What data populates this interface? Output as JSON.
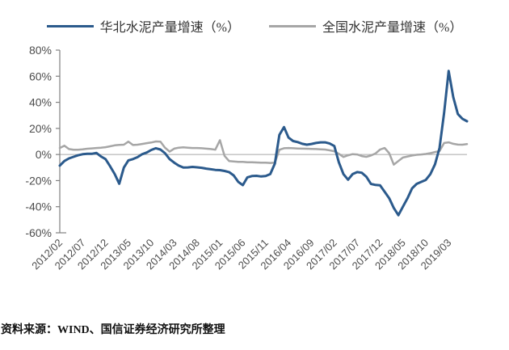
{
  "legend": {
    "items": [
      {
        "id": "north-china",
        "label": "华北水泥产量增速（%）",
        "color": "#2b5a8c"
      },
      {
        "id": "national",
        "label": "全国水泥产量增速（%）",
        "color": "#a6a6a6"
      }
    ]
  },
  "source_note": "资料来源：WIND、国信证券经济研究所整理",
  "chart_data": {
    "type": "line",
    "title": "",
    "legend_position": "top-center",
    "grid": "zero-line-only",
    "ylim": [
      -60,
      80
    ],
    "y_ticks": [
      80,
      60,
      40,
      20,
      0,
      -20,
      -40,
      -60
    ],
    "y_tick_labels": [
      "80%",
      "60%",
      "40%",
      "20%",
      "0%",
      "-20%",
      "-40%",
      "-60%"
    ],
    "x_tick_every": 5,
    "x_tick_labels": [
      "2012/02",
      "2012/07",
      "2012/12",
      "2013/05",
      "2013/10",
      "2014/03",
      "2014/08",
      "2015/01",
      "2015/06",
      "2015/11",
      "2016/04",
      "2016/09",
      "2017/02",
      "2017/07",
      "2017/12",
      "2018/05",
      "2018/10",
      "2019/03"
    ],
    "categories": [
      "2012/02",
      "2012/03",
      "2012/04",
      "2012/05",
      "2012/06",
      "2012/07",
      "2012/08",
      "2012/09",
      "2012/10",
      "2012/11",
      "2012/12",
      "2013/01",
      "2013/02",
      "2013/03",
      "2013/04",
      "2013/05",
      "2013/06",
      "2013/07",
      "2013/08",
      "2013/09",
      "2013/10",
      "2013/11",
      "2013/12",
      "2014/01",
      "2014/02",
      "2014/03",
      "2014/04",
      "2014/05",
      "2014/06",
      "2014/07",
      "2014/08",
      "2014/09",
      "2014/10",
      "2014/11",
      "2014/12",
      "2015/01",
      "2015/02",
      "2015/03",
      "2015/04",
      "2015/05",
      "2015/06",
      "2015/07",
      "2015/08",
      "2015/09",
      "2015/10",
      "2015/11",
      "2015/12",
      "2016/01",
      "2016/02",
      "2016/03",
      "2016/04",
      "2016/05",
      "2016/06",
      "2016/07",
      "2016/08",
      "2016/09",
      "2016/10",
      "2016/11",
      "2016/12",
      "2017/01",
      "2017/02",
      "2017/03",
      "2017/04",
      "2017/05",
      "2017/06",
      "2017/07",
      "2017/08",
      "2017/09",
      "2017/10",
      "2017/11",
      "2017/12",
      "2018/01",
      "2018/02",
      "2018/03",
      "2018/04",
      "2018/05",
      "2018/06",
      "2018/07",
      "2018/08",
      "2018/09",
      "2018/10",
      "2018/11",
      "2018/12",
      "2019/01",
      "2019/02",
      "2019/03",
      "2019/04",
      "2019/05",
      "2019/06",
      "2019/07"
    ],
    "series": [
      {
        "id": "north-china",
        "name": "华北水泥产量增速（%）",
        "color": "#2b5a8c",
        "stroke_width": 3,
        "values": [
          -8.5,
          -5,
          -3,
          -1.8,
          -0.6,
          0.2,
          0.5,
          0.5,
          1.2,
          -1.5,
          -3.5,
          -9,
          -15,
          -22.4,
          -10,
          -4.5,
          -3.5,
          -2,
          0.2,
          1.5,
          3.5,
          4.8,
          3.8,
          1,
          -3.5,
          -6.2,
          -8.5,
          -10,
          -9.9,
          -9.5,
          -9.8,
          -10.2,
          -10.8,
          -11.3,
          -11.8,
          -12,
          -12.6,
          -13.5,
          -16,
          -21,
          -23.5,
          -17.5,
          -16.5,
          -16.3,
          -16.8,
          -16.5,
          -15,
          -7,
          15,
          21,
          13,
          10.3,
          9.5,
          8.2,
          7.5,
          8.1,
          8.8,
          9.3,
          9.3,
          8.4,
          6.5,
          -6,
          -15,
          -19.3,
          -15,
          -13.5,
          -14,
          -17,
          -22.5,
          -23.3,
          -23.6,
          -28.6,
          -33.5,
          -41,
          -46.5,
          -40,
          -33.5,
          -26,
          -22.5,
          -21,
          -19.5,
          -15,
          -7.5,
          5,
          32,
          64,
          44,
          31,
          27.4,
          25.5
        ]
      },
      {
        "id": "national",
        "name": "全国水泥产量增速（%）",
        "color": "#a6a6a6",
        "stroke_width": 2.5,
        "values": [
          5,
          6.8,
          4.2,
          3.7,
          3.7,
          4,
          4.4,
          4.7,
          5,
          5.2,
          5.6,
          6.3,
          7,
          7.4,
          7.5,
          9.9,
          7.3,
          7.5,
          8.1,
          8.7,
          9.2,
          10,
          9.8,
          5.2,
          2.2,
          4.5,
          5.2,
          5.5,
          5.2,
          5,
          5,
          4.8,
          4.5,
          4.2,
          3.7,
          11,
          -1,
          -5,
          -5.3,
          -5.6,
          -5.6,
          -6,
          -6,
          -6.1,
          -6.2,
          -6.3,
          -6.5,
          -6.2,
          3.6,
          4.8,
          5,
          4.8,
          4.6,
          4.5,
          4.4,
          4.3,
          4.2,
          4,
          3.8,
          3.2,
          2.5,
          0.5,
          -1.9,
          -0.6,
          0.3,
          0,
          -1.2,
          -1.8,
          -0.8,
          0.8,
          3.8,
          5,
          1,
          -7.8,
          -5,
          -2.3,
          -1.5,
          -0.8,
          -0.2,
          0,
          0.4,
          1,
          1.9,
          2.6,
          8.8,
          9.3,
          8.2,
          7.6,
          7.5,
          8
        ]
      }
    ],
    "axis_color": "#808080",
    "zero_line_color": "#a6a6a6",
    "tick_label_color": "#4d4d4d"
  }
}
